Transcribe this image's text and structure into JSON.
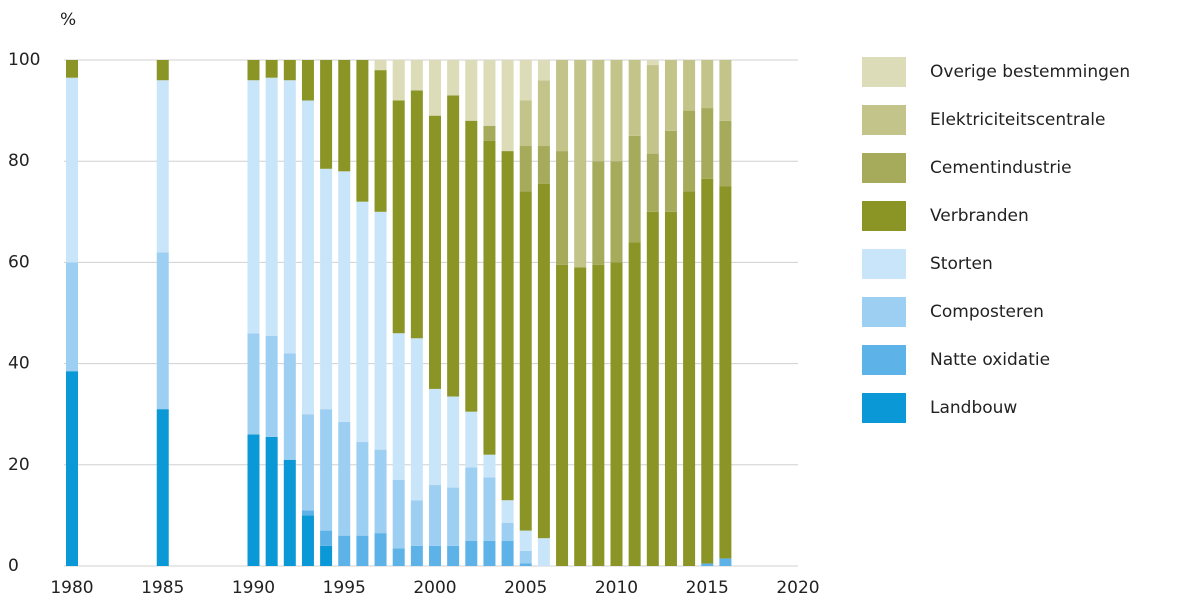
{
  "chart_data": {
    "type": "stacked_bar",
    "ylabel": "%",
    "x": [
      1980,
      1985,
      1990,
      1991,
      1992,
      1993,
      1994,
      1995,
      1996,
      1997,
      1998,
      1999,
      2000,
      2001,
      2002,
      2003,
      2004,
      2005,
      2006,
      2007,
      2008,
      2009,
      2010,
      2011,
      2012,
      2013,
      2014,
      2015,
      2016
    ],
    "xlim": [
      1980,
      2020
    ],
    "xticks": [
      1980,
      1985,
      1990,
      1995,
      2000,
      2005,
      2010,
      2015,
      2020
    ],
    "ylim": [
      0,
      100
    ],
    "yticks": [
      0,
      20,
      40,
      60,
      80,
      100
    ],
    "grid": true,
    "series": [
      {
        "name": "Landbouw",
        "color": "#0b98d6",
        "values": [
          38.5,
          31,
          26,
          25.5,
          21,
          10,
          4,
          0,
          0,
          0,
          0,
          0,
          0,
          0,
          0,
          0,
          0,
          0,
          0,
          0,
          0,
          0,
          0,
          0,
          0,
          0,
          0,
          0,
          0
        ]
      },
      {
        "name": "Natte oxidatie",
        "color": "#5db3e8",
        "values": [
          0,
          0,
          0,
          0,
          0,
          1,
          3,
          6,
          6,
          6.5,
          3.5,
          4,
          4,
          4,
          5,
          5,
          5,
          0.5,
          0,
          0,
          0,
          0,
          0,
          0,
          0,
          0,
          0,
          0.5,
          1.5
        ]
      },
      {
        "name": "Composteren",
        "color": "#9dcff3",
        "values": [
          21.5,
          31,
          20,
          20,
          21,
          19,
          24,
          22.5,
          18.5,
          16.5,
          13.5,
          9,
          12,
          11.5,
          14.5,
          12.5,
          3.5,
          2.5,
          0,
          0,
          0,
          0,
          0,
          0,
          0,
          0,
          0,
          0,
          0
        ]
      },
      {
        "name": "Storten",
        "color": "#c9e5f9",
        "values": [
          36.5,
          34,
          50,
          51,
          54,
          62,
          47.5,
          49.5,
          47.5,
          47,
          29,
          32,
          19,
          18,
          11,
          4.5,
          4.5,
          4,
          5.5,
          0,
          0,
          0,
          0,
          0,
          0,
          0,
          0,
          0,
          0
        ]
      },
      {
        "name": "Verbranden",
        "color": "#8a9526",
        "values": [
          3.5,
          4,
          4,
          3.5,
          4,
          8,
          21.5,
          22,
          28,
          28,
          46,
          49,
          54,
          59.5,
          57.5,
          62,
          69,
          67,
          70,
          59.5,
          59,
          59.5,
          60,
          64,
          70,
          70,
          74,
          76,
          73.5
        ]
      },
      {
        "name": "Cementindustrie",
        "color": "#a6ab5c",
        "values": [
          0,
          0,
          0,
          0,
          0,
          0,
          0,
          0,
          0,
          0,
          0,
          0,
          0,
          0,
          0,
          3,
          0,
          9,
          7.5,
          22.5,
          0,
          20.5,
          20,
          21,
          11.5,
          16,
          16,
          14,
          13
        ]
      },
      {
        "name": "Elektriciteitscentrale",
        "color": "#c3c48a",
        "values": [
          0,
          0,
          0,
          0,
          0,
          0,
          0,
          0,
          0,
          0,
          0,
          0,
          0,
          0,
          0,
          0,
          0,
          9,
          13,
          18,
          41,
          20,
          20,
          15,
          17.5,
          14,
          10,
          9.5,
          12
        ]
      },
      {
        "name": "Overige bestemmingen",
        "color": "#dcdcb8",
        "values": [
          0,
          0,
          0,
          0,
          0,
          0,
          0,
          0,
          0,
          2,
          8,
          6,
          11,
          7,
          12,
          13,
          18,
          8,
          4,
          0,
          0,
          0,
          0,
          0,
          1,
          0,
          0,
          0,
          0
        ]
      }
    ]
  }
}
